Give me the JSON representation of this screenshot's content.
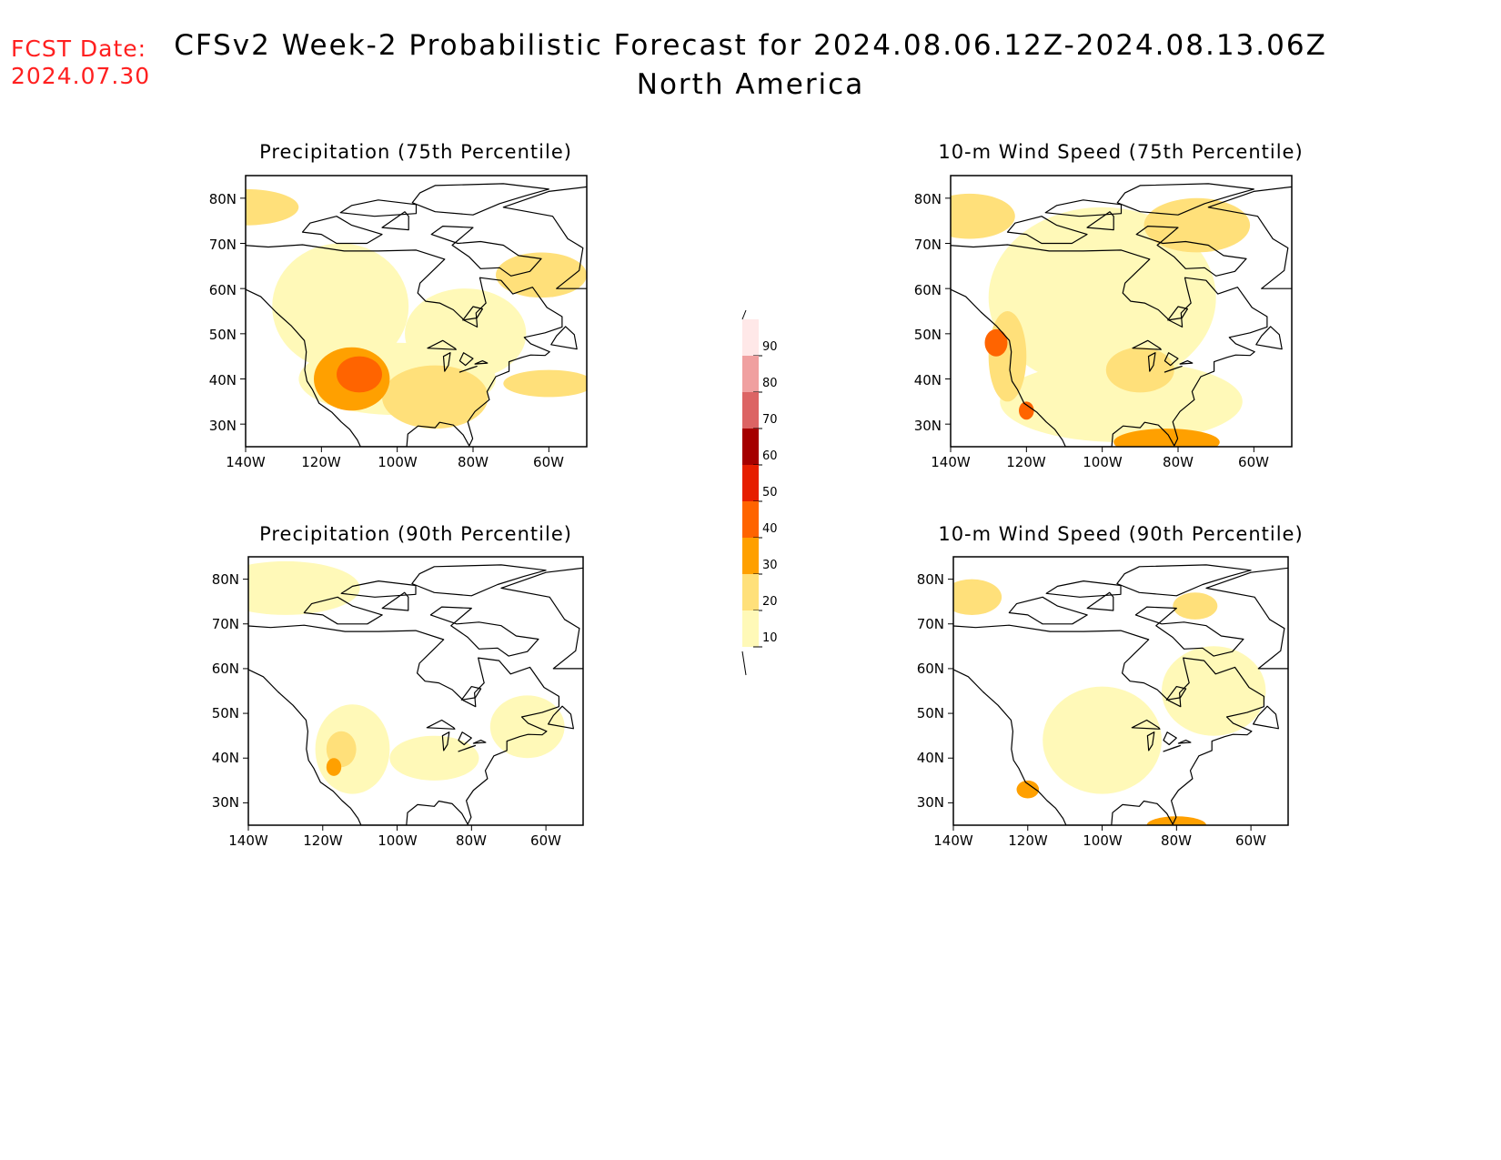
{
  "fcst_label": "FCST Date:",
  "fcst_date": "2024.07.30",
  "title": "CFSv2 Week-2 Probabilistic Forecast for 2024.08.06.12Z-2024.08.13.06Z",
  "subtitle": "North America",
  "axes": {
    "lat_ticks": [
      "80N",
      "70N",
      "60N",
      "50N",
      "40N",
      "30N"
    ],
    "lon_ticks": [
      "140W",
      "120W",
      "100W",
      "80W",
      "60W"
    ]
  },
  "colorbar": {
    "levels": [
      "10",
      "20",
      "30",
      "40",
      "50",
      "60",
      "70",
      "80",
      "90"
    ],
    "colors": [
      "#ffffff",
      "#fff9b8",
      "#ffe07a",
      "#ffa000",
      "#ff6400",
      "#e61e00",
      "#a50000",
      "#dc6464",
      "#f0a0a0",
      "#ffe8e8"
    ]
  },
  "panels": [
    {
      "id": "precip-75",
      "title": "Precipitation (75th Percentile)",
      "blobs": [
        {
          "lon": -115,
          "lat": 56,
          "rx": 18,
          "ry": 14,
          "level": 1
        },
        {
          "lon": -82,
          "lat": 50,
          "rx": 16,
          "ry": 10,
          "level": 1
        },
        {
          "lon": -100,
          "lat": 40,
          "rx": 26,
          "ry": 8,
          "level": 1
        },
        {
          "lon": -140,
          "lat": 78,
          "rx": 14,
          "ry": 4,
          "level": 2
        },
        {
          "lon": -62,
          "lat": 63,
          "rx": 12,
          "ry": 5,
          "level": 2
        },
        {
          "lon": -90,
          "lat": 36,
          "rx": 14,
          "ry": 7,
          "level": 2
        },
        {
          "lon": -60,
          "lat": 39,
          "rx": 12,
          "ry": 3,
          "level": 2
        },
        {
          "lon": -112,
          "lat": 40,
          "rx": 10,
          "ry": 7,
          "level": 3
        },
        {
          "lon": -110,
          "lat": 41,
          "rx": 6,
          "ry": 4,
          "level": 4
        }
      ]
    },
    {
      "id": "wind-75",
      "title": "10-m Wind Speed (75th Percentile)",
      "blobs": [
        {
          "lon": -100,
          "lat": 58,
          "rx": 30,
          "ry": 20,
          "level": 1
        },
        {
          "lon": -95,
          "lat": 35,
          "rx": 32,
          "ry": 9,
          "level": 1
        },
        {
          "lon": -135,
          "lat": 76,
          "rx": 12,
          "ry": 5,
          "level": 2
        },
        {
          "lon": -75,
          "lat": 74,
          "rx": 14,
          "ry": 6,
          "level": 2
        },
        {
          "lon": -125,
          "lat": 45,
          "rx": 5,
          "ry": 10,
          "level": 2
        },
        {
          "lon": -90,
          "lat": 42,
          "rx": 9,
          "ry": 5,
          "level": 2
        },
        {
          "lon": -83,
          "lat": 26,
          "rx": 14,
          "ry": 3,
          "level": 3
        },
        {
          "lon": -128,
          "lat": 48,
          "rx": 3,
          "ry": 3,
          "level": 4
        },
        {
          "lon": -120,
          "lat": 33,
          "rx": 2,
          "ry": 2,
          "level": 4
        }
      ]
    },
    {
      "id": "precip-90",
      "title": "Precipitation (90th Percentile)",
      "blobs": [
        {
          "lon": -130,
          "lat": 78,
          "rx": 20,
          "ry": 6,
          "level": 1
        },
        {
          "lon": -112,
          "lat": 42,
          "rx": 10,
          "ry": 10,
          "level": 1
        },
        {
          "lon": -90,
          "lat": 40,
          "rx": 12,
          "ry": 5,
          "level": 1
        },
        {
          "lon": -65,
          "lat": 47,
          "rx": 10,
          "ry": 7,
          "level": 1
        },
        {
          "lon": -115,
          "lat": 42,
          "rx": 4,
          "ry": 4,
          "level": 2
        },
        {
          "lon": -117,
          "lat": 38,
          "rx": 2,
          "ry": 2,
          "level": 3
        }
      ]
    },
    {
      "id": "wind-90",
      "title": "10-m Wind Speed (90th Percentile)",
      "blobs": [
        {
          "lon": -100,
          "lat": 44,
          "rx": 16,
          "ry": 12,
          "level": 1
        },
        {
          "lon": -70,
          "lat": 55,
          "rx": 14,
          "ry": 10,
          "level": 1
        },
        {
          "lon": -135,
          "lat": 76,
          "rx": 8,
          "ry": 4,
          "level": 2
        },
        {
          "lon": -75,
          "lat": 74,
          "rx": 6,
          "ry": 3,
          "level": 2
        },
        {
          "lon": -120,
          "lat": 33,
          "rx": 3,
          "ry": 2,
          "level": 3
        },
        {
          "lon": -80,
          "lat": 25,
          "rx": 8,
          "ry": 2,
          "level": 3
        }
      ]
    }
  ]
}
